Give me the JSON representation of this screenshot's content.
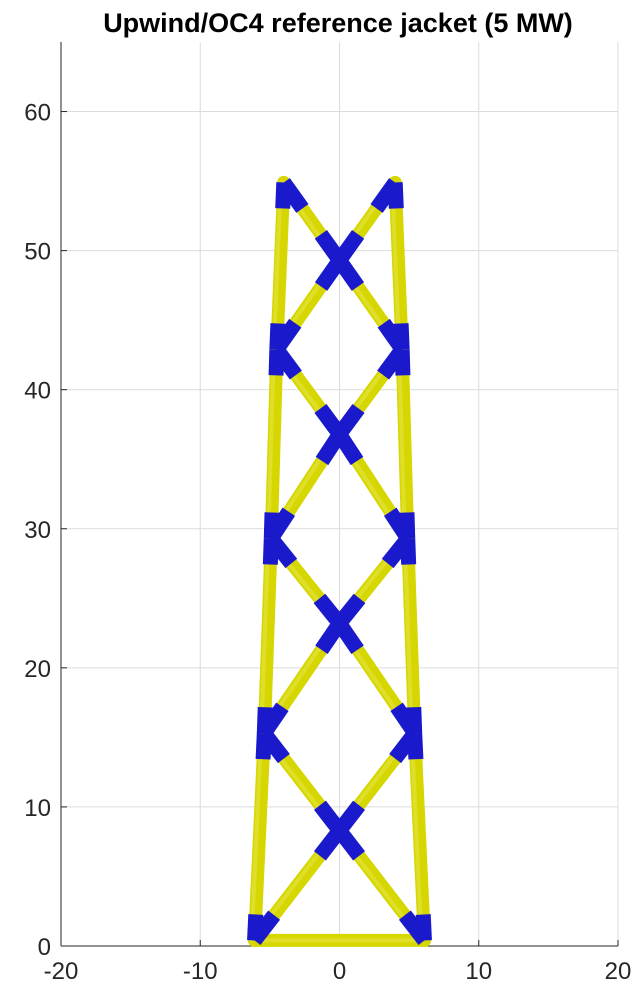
{
  "title": "Upwind/OC4 reference jacket (5 MW)",
  "colors": {
    "member": "#d6d600",
    "member_highlight": "#f2f27a",
    "joint": "#1a1acc",
    "axis": "#262626",
    "grid": "#dcdcdc"
  },
  "chart_data": {
    "type": "line",
    "title": "Upwind/OC4 reference jacket (5 MW)",
    "xlabel": "",
    "ylabel": "",
    "xlim": [
      -20,
      20
    ],
    "ylim": [
      0,
      65
    ],
    "x_ticks": [
      -20,
      -10,
      0,
      10,
      20
    ],
    "y_ticks": [
      0,
      10,
      20,
      30,
      40,
      50,
      60
    ],
    "grid": true,
    "legend": "none",
    "legs": [
      {
        "name": "left leg",
        "points": [
          [
            -6.1,
            0.4
          ],
          [
            -5.4,
            15.3
          ],
          [
            -4.9,
            29.3
          ],
          [
            -4.5,
            42.9
          ],
          [
            -4.0,
            54.9
          ]
        ]
      },
      {
        "name": "right leg",
        "points": [
          [
            6.1,
            0.4
          ],
          [
            5.4,
            15.3
          ],
          [
            4.9,
            29.3
          ],
          [
            4.5,
            42.9
          ],
          [
            4.0,
            54.9
          ]
        ]
      }
    ],
    "x_joints": [
      {
        "x": 0,
        "y": 8.3
      },
      {
        "x": 0,
        "y": 23.2
      },
      {
        "x": 0,
        "y": 36.8
      },
      {
        "x": 0,
        "y": 49.3
      }
    ],
    "mudline_brace": {
      "x": [
        -6.1,
        6.1
      ],
      "y": [
        0.4,
        0.4
      ]
    }
  }
}
